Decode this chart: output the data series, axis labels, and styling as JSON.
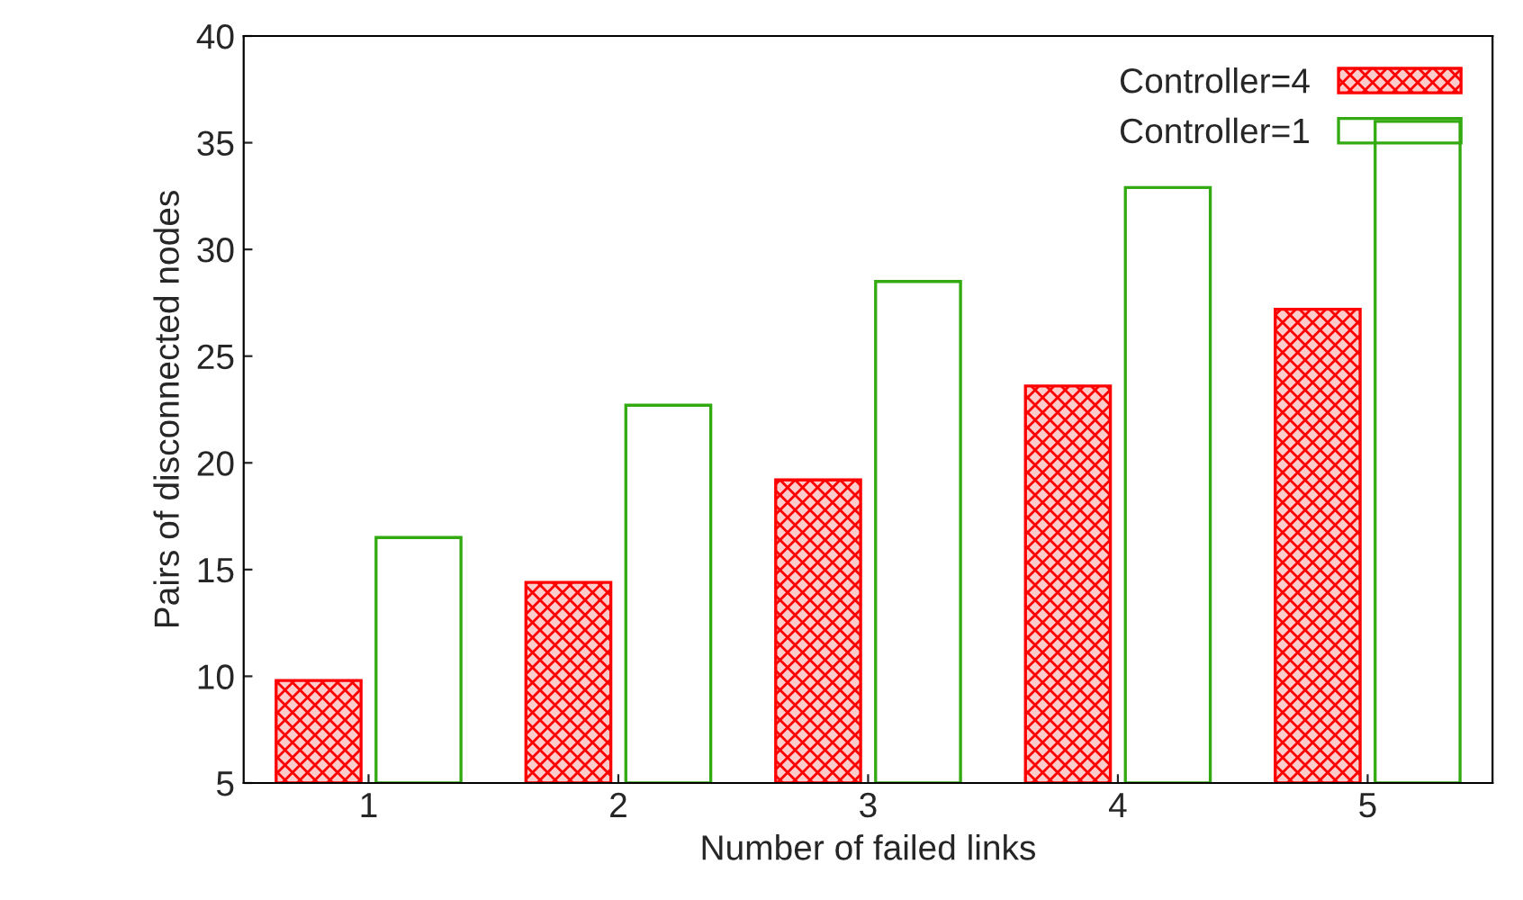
{
  "chart_data": {
    "type": "bar",
    "xlabel": "Number of failed links",
    "ylabel": "Pairs of disconnected nodes",
    "categories": [
      "1",
      "2",
      "3",
      "4",
      "5"
    ],
    "series": [
      {
        "name": "Controller=4",
        "color": "#ff0000",
        "values": [
          9.8,
          14.4,
          19.2,
          23.6,
          27.2
        ]
      },
      {
        "name": "Controller=1",
        "color": "#33aa11",
        "values": [
          16.5,
          22.7,
          28.5,
          32.9,
          36.0
        ]
      }
    ],
    "ylim": [
      5,
      40
    ],
    "yticks": [
      5,
      10,
      15,
      20,
      25,
      30,
      35,
      40
    ],
    "grid": false,
    "legend": "top right"
  }
}
